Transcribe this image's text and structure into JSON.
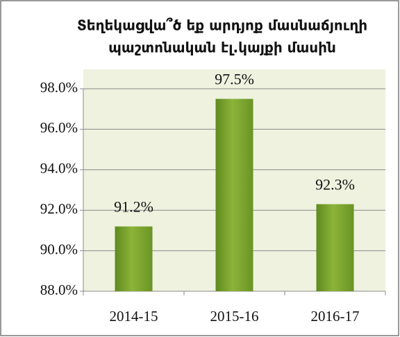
{
  "chart_data": {
    "type": "bar",
    "title": [
      "Տեղեկացվա՞ծ եք արդյոք մասնաճյուղի",
      "պաշտոնական էլ.կայքի մասին"
    ],
    "categories": [
      "2014-15",
      "2015-16",
      "2016-17"
    ],
    "values": [
      91.2,
      97.5,
      92.3
    ],
    "value_labels": [
      "91.2%",
      "97.5%",
      "92.3%"
    ],
    "color": "#8cb43a",
    "ylim": [
      88,
      98
    ],
    "yticks": [
      {
        "value": 88,
        "label": "88.0%"
      },
      {
        "value": 90,
        "label": "90.0%"
      },
      {
        "value": 92,
        "label": "92.0%"
      },
      {
        "value": 94,
        "label": "94.0%"
      },
      {
        "value": 96,
        "label": "96.0%"
      },
      {
        "value": 98,
        "label": "98.0%"
      }
    ],
    "grid": true
  }
}
